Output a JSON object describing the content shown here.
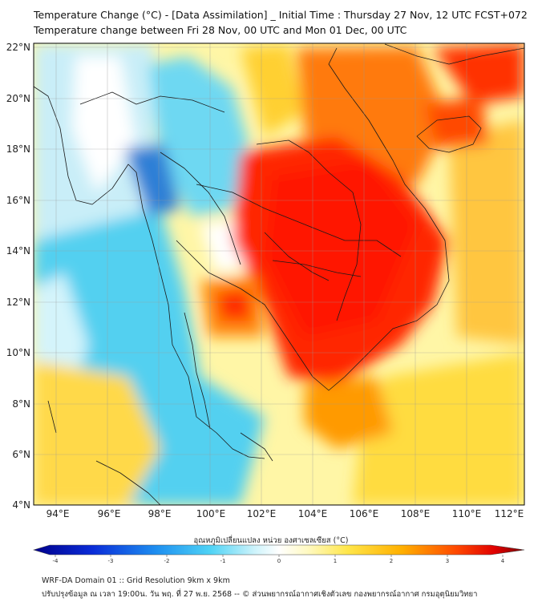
{
  "title_line1": "Temperature Change (°C) - [Data Assimilation] _ Initial Time : Thursday 27 Nov, 12 UTC FCST+072",
  "title_line2": "Temperature change between Fri 28 Nov, 00 UTC and Mon 01 Dec, 00 UTC",
  "lat_labels": [
    "22°N",
    "20°N",
    "18°N",
    "16°N",
    "14°N",
    "12°N",
    "10°N",
    "8°N",
    "6°N",
    "4°N"
  ],
  "lon_labels": [
    "94°E",
    "96°E",
    "98°E",
    "100°E",
    "102°E",
    "104°E",
    "106°E",
    "108°E",
    "110°E",
    "112°E"
  ],
  "colorbar": {
    "title": "อุณหภูมิเปลี่ยนแปลง หน่วย องศาเซลเซียส (°C)",
    "ticks": [
      "-4",
      "-3",
      "-2",
      "-1",
      "0",
      "1",
      "2",
      "3",
      "4"
    ],
    "min": -4,
    "max": 4
  },
  "footer_line1": "WRF-DA Domain 01 :: Grid Resolution 9km x 9km",
  "footer_line2": "ปรับปรุงข้อมูล ณ เวลา 19:00น. วัน พฤ. ที่ 27 พ.ย. 2568 -- © ส่วนพยากรณ์อากาศเชิงตัวเลข กองพยากรณ์อากาศ กรมอุตุนิยมวิทยา",
  "colors": {
    "strong_cooling": "#00008b",
    "cooling": "#29c5f0",
    "neutral": "#ffffff",
    "warming": "#ffd200",
    "strong_warming": "#ff1a00",
    "extreme_warming": "#7a0000"
  }
}
